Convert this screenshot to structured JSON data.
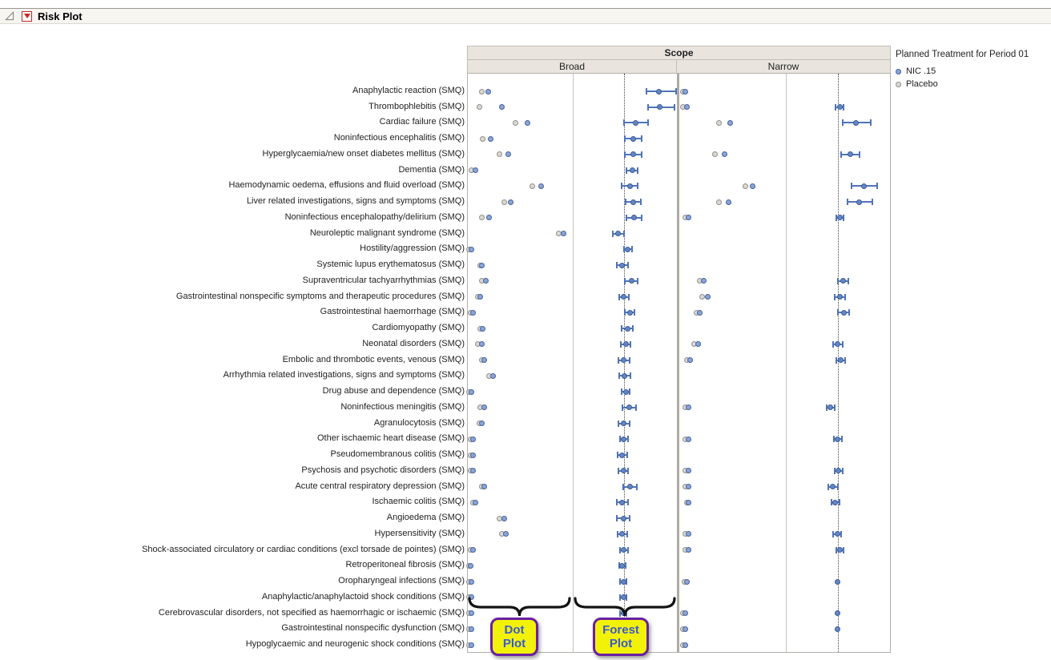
{
  "window": {
    "title": "Risk Plot"
  },
  "headers": {
    "scope": "Scope",
    "broad": "Broad",
    "narrow": "Narrow"
  },
  "legend": {
    "title": "Planned Treatment for Period 01",
    "items": [
      {
        "label": "NIC .15",
        "color": "#8aa5d6",
        "border": "#46619c"
      },
      {
        "label": "Placebo",
        "color": "#dbd9d3",
        "border": "#918f8a"
      }
    ]
  },
  "annotations": {
    "dot_plot": "Dot Plot",
    "forest_plot": "Forest Plot"
  },
  "colors": {
    "forest_blue": "#4f74b8",
    "callout_fill": "#f2f209",
    "callout_border": "#6b1fa0",
    "callout_text": "#3a5ad0",
    "header_band": "#e9e5de"
  },
  "chart_data": {
    "type": "scatter",
    "title": "Risk Plot",
    "column_group_header": "Scope",
    "column_groups": [
      "Broad",
      "Narrow"
    ],
    "panels_per_group": [
      "Dot Plot",
      "Forest Plot"
    ],
    "series": [
      "NIC .15",
      "Placebo"
    ],
    "value_format": {
      "dot": [
        "placebo_x_pct",
        "nic15_x_pct"
      ],
      "forest": [
        "estimate_x_pct",
        "ci_low_x_pct",
        "ci_high_x_pct"
      ],
      "units": "percent of panel width (x-axis tick labels are cut off in the view)"
    },
    "reference_line_x_pct": {
      "broad_forest": 47.7,
      "narrow_forest": 48.1
    },
    "rows": [
      {
        "label": "Anaphylactic reaction (SMQ)",
        "broad_dot": [
          13.7,
          19.1
        ],
        "broad_forest": [
          82.0,
          70.3,
          98.4
        ],
        "narrow_dot": [
          3.0,
          5.3
        ],
        "narrow_forest": null
      },
      {
        "label": "Thrombophlebitis (SMQ)",
        "broad_dot": [
          10.7,
          32.1
        ],
        "broad_forest": [
          82.8,
          71.9,
          96.9
        ],
        "narrow_dot": [
          3.0,
          6.1
        ],
        "narrow_forest": [
          50.4,
          46.5,
          54.3
        ]
      },
      {
        "label": "Cardiac failure (SMQ)",
        "broad_dot": [
          45.8,
          56.5
        ],
        "broad_forest": [
          59.4,
          48.4,
          71.9
        ],
        "narrow_dot": [
          37.1,
          47.7
        ],
        "narrow_forest": [
          65.9,
          53.5,
          79.8
        ]
      },
      {
        "label": "Noninfectious encephalitis (SMQ)",
        "broad_dot": [
          14.5,
          22.1
        ],
        "broad_forest": [
          57.0,
          49.2,
          65.6
        ],
        "narrow_dot": null,
        "narrow_forest": null
      },
      {
        "label": "Hyperglycaemia/new onset diabetes mellitus (SMQ)",
        "broad_dot": [
          29.8,
          38.2
        ],
        "broad_forest": [
          57.0,
          49.2,
          65.6
        ],
        "narrow_dot": [
          32.6,
          42.4
        ],
        "narrow_forest": [
          60.5,
          51.9,
          69.8
        ]
      },
      {
        "label": "Dementia (SMQ)",
        "broad_dot": [
          3.8,
          7.6
        ],
        "broad_forest": [
          56.3,
          50.8,
          61.7
        ],
        "narrow_dot": null,
        "narrow_forest": null
      },
      {
        "label": "Haemodynamic oedema, effusions and fluid overload (SMQ)",
        "broad_dot": [
          61.8,
          69.5
        ],
        "broad_forest": [
          53.9,
          46.1,
          61.7
        ],
        "narrow_dot": [
          62.1,
          68.9
        ],
        "narrow_forest": [
          73.6,
          62.0,
          86.0
        ]
      },
      {
        "label": "Liver related investigations, signs and symptoms (SMQ)",
        "broad_dot": [
          34.4,
          40.5
        ],
        "broad_forest": [
          57.0,
          50.0,
          64.8
        ],
        "narrow_dot": [
          37.1,
          45.5
        ],
        "narrow_forest": [
          69.0,
          58.1,
          81.4
        ]
      },
      {
        "label": "Noninfectious encephalopathy/delirium (SMQ)",
        "broad_dot": [
          13.0,
          20.6
        ],
        "broad_forest": [
          57.8,
          50.8,
          65.6
        ],
        "narrow_dot": [
          5.3,
          7.6
        ],
        "narrow_forest": [
          50.4,
          47.3,
          54.3
        ]
      },
      {
        "label": "Neuroleptic malignant syndrome (SMQ)",
        "broad_dot": [
          87.0,
          91.6
        ],
        "broad_forest": [
          43.0,
          37.5,
          48.4
        ],
        "narrow_dot": null,
        "narrow_forest": null
      },
      {
        "label": "Hostility/aggression (SMQ)",
        "broad_dot": [
          0.8,
          3.1
        ],
        "broad_forest": [
          52.3,
          48.4,
          56.3
        ],
        "narrow_dot": null,
        "narrow_forest": null
      },
      {
        "label": "Systemic lupus erythematosus (SMQ)",
        "broad_dot": [
          11.5,
          13.7
        ],
        "broad_forest": [
          46.9,
          41.4,
          52.3
        ],
        "narrow_dot": null,
        "narrow_forest": null
      },
      {
        "label": "Supraventricular tachyarrhythmias (SMQ)",
        "broad_dot": [
          13.0,
          16.8
        ],
        "broad_forest": [
          55.5,
          49.2,
          61.7
        ],
        "narrow_dot": [
          18.9,
          22.0
        ],
        "narrow_forest": [
          53.5,
          48.8,
          58.9
        ]
      },
      {
        "label": "Gastrointestinal nonspecific symptoms and therapeutic procedures (SMQ)",
        "broad_dot": [
          9.9,
          12.2
        ],
        "broad_forest": [
          48.4,
          43.8,
          53.1
        ],
        "narrow_dot": [
          21.2,
          25.8
        ],
        "narrow_forest": [
          50.4,
          45.7,
          55.8
        ]
      },
      {
        "label": "Gastrointestinal haemorrhage (SMQ)",
        "broad_dot": [
          2.3,
          5.3
        ],
        "broad_forest": [
          53.9,
          49.2,
          58.6
        ],
        "narrow_dot": [
          15.2,
          18.2
        ],
        "narrow_forest": [
          54.3,
          48.8,
          59.7
        ]
      },
      {
        "label": "Cardiomyopathy (SMQ)",
        "broad_dot": [
          11.5,
          14.5
        ],
        "broad_forest": [
          51.6,
          46.1,
          57.0
        ],
        "narrow_dot": null,
        "narrow_forest": null
      },
      {
        "label": "Neonatal disorders (SMQ)",
        "broad_dot": [
          9.9,
          13.0
        ],
        "broad_forest": [
          50.0,
          45.3,
          54.7
        ],
        "narrow_dot": [
          13.6,
          16.7
        ],
        "narrow_forest": [
          48.8,
          44.2,
          53.5
        ]
      },
      {
        "label": "Embolic and thrombotic events, venous (SMQ)",
        "broad_dot": [
          13.0,
          16.0
        ],
        "broad_forest": [
          48.4,
          43.0,
          53.9
        ],
        "narrow_dot": [
          6.1,
          9.1
        ],
        "narrow_forest": [
          51.2,
          47.3,
          55.8
        ]
      },
      {
        "label": "Arrhythmia related investigations, signs and symptoms (SMQ)",
        "broad_dot": [
          20.6,
          23.7
        ],
        "broad_forest": [
          49.2,
          43.8,
          54.7
        ],
        "narrow_dot": null,
        "narrow_forest": null
      },
      {
        "label": "Drug abuse and dependence (SMQ)",
        "broad_dot": [
          1.5,
          3.8
        ],
        "broad_forest": [
          50.0,
          46.1,
          53.9
        ],
        "narrow_dot": null,
        "narrow_forest": null
      },
      {
        "label": "Noninfectious meningitis (SMQ)",
        "broad_dot": [
          12.2,
          15.3
        ],
        "broad_forest": [
          53.1,
          46.9,
          60.2
        ],
        "narrow_dot": [
          5.3,
          7.6
        ],
        "narrow_forest": [
          41.9,
          38.0,
          45.7
        ]
      },
      {
        "label": "Agranulocytosis (SMQ)",
        "broad_dot": [
          10.7,
          13.7
        ],
        "broad_forest": [
          48.4,
          43.0,
          53.9
        ],
        "narrow_dot": null,
        "narrow_forest": null
      },
      {
        "label": "Other ischaemic heart disease (SMQ)",
        "broad_dot": [
          2.3,
          4.6
        ],
        "broad_forest": [
          48.4,
          44.5,
          52.3
        ],
        "narrow_dot": [
          5.3,
          7.6
        ],
        "narrow_forest": [
          48.8,
          45.0,
          52.7
        ]
      },
      {
        "label": "Pseudomembranous colitis (SMQ)",
        "broad_dot": [
          2.3,
          4.6
        ],
        "broad_forest": [
          46.9,
          42.2,
          51.6
        ],
        "narrow_dot": null,
        "narrow_forest": null
      },
      {
        "label": "Psychosis and psychotic disorders (SMQ)",
        "broad_dot": [
          2.3,
          4.6
        ],
        "broad_forest": [
          47.7,
          43.0,
          52.3
        ],
        "narrow_dot": [
          5.3,
          7.6
        ],
        "narrow_forest": [
          49.6,
          45.7,
          53.5
        ]
      },
      {
        "label": "Acute central respiratory depression (SMQ)",
        "broad_dot": [
          13.0,
          16.0
        ],
        "broad_forest": [
          53.9,
          47.7,
          60.9
        ],
        "narrow_dot": [
          5.3,
          7.6
        ],
        "narrow_forest": [
          44.2,
          39.5,
          48.8
        ]
      },
      {
        "label": "Ischaemic colitis (SMQ)",
        "broad_dot": [
          4.6,
          6.9
        ],
        "broad_forest": [
          46.9,
          41.4,
          52.3
        ],
        "narrow_dot": [
          6.1,
          8.3
        ],
        "narrow_forest": [
          46.5,
          42.6,
          50.4
        ]
      },
      {
        "label": "Angioedema (SMQ)",
        "broad_dot": [
          29.8,
          34.4
        ],
        "broad_forest": [
          47.7,
          41.4,
          53.9
        ],
        "narrow_dot": null,
        "narrow_forest": null
      },
      {
        "label": "Hypersensitivity (SMQ)",
        "broad_dot": [
          32.1,
          35.9
        ],
        "broad_forest": [
          46.9,
          42.2,
          51.6
        ],
        "narrow_dot": [
          5.3,
          7.6
        ],
        "narrow_forest": [
          48.1,
          44.5,
          51.6
        ]
      },
      {
        "label": "Shock-associated circulatory or cardiac conditions (excl torsade de pointes) (SMQ)",
        "broad_dot": [
          2.3,
          4.6
        ],
        "broad_forest": [
          48.4,
          44.5,
          52.3
        ],
        "narrow_dot": [
          5.3,
          7.6
        ],
        "narrow_forest": [
          50.4,
          47.3,
          54.3
        ]
      },
      {
        "label": "Retroperitoneal fibrosis (SMQ)",
        "broad_dot": [
          0.8,
          2.3
        ],
        "broad_forest": [
          46.9,
          43.8,
          50.0
        ],
        "narrow_dot": null,
        "narrow_forest": null
      },
      {
        "label": "Oropharyngeal infections (SMQ)",
        "broad_dot": [
          1.5,
          3.8
        ],
        "broad_forest": [
          47.7,
          44.5,
          50.8
        ],
        "narrow_dot": [
          3.8,
          6.1
        ],
        "narrow_forest": [
          48.8,
          null,
          null
        ]
      },
      {
        "label": "Anaphylactic/anaphylactoid shock conditions (SMQ)",
        "broad_dot": [
          0.8,
          3.1
        ],
        "broad_forest": [
          47.7,
          44.5,
          50.8
        ],
        "narrow_dot": null,
        "narrow_forest": null
      },
      {
        "label": "Cerebrovascular disorders, not specified as haemorrhagic or ischaemic (SMQ)",
        "broad_dot": [
          0.8,
          3.1
        ],
        "broad_forest": [
          47.7,
          44.5,
          50.8
        ],
        "narrow_dot": [
          3.0,
          5.3
        ],
        "narrow_forest": [
          48.1,
          null,
          null
        ]
      },
      {
        "label": "Gastrointestinal nonspecific dysfunction (SMQ)",
        "broad_dot": [
          1.5,
          3.8
        ],
        "broad_forest": [
          47.7,
          44.5,
          50.8
        ],
        "narrow_dot": [
          3.0,
          5.3
        ],
        "narrow_forest": [
          48.1,
          null,
          null
        ]
      },
      {
        "label": "Hypoglycaemic and neurogenic shock conditions (SMQ)",
        "broad_dot": [
          0.8,
          3.1
        ],
        "broad_forest": [
          47.7,
          44.5,
          50.8
        ],
        "narrow_dot": [
          3.0,
          5.3
        ],
        "narrow_forest": null
      }
    ]
  }
}
